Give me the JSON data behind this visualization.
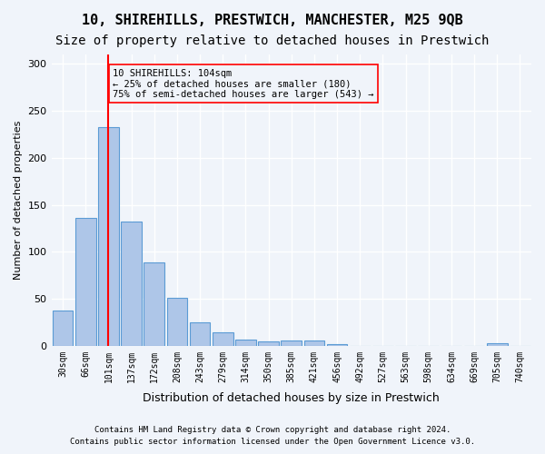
{
  "title1": "10, SHIREHILLS, PRESTWICH, MANCHESTER, M25 9QB",
  "title2": "Size of property relative to detached houses in Prestwich",
  "xlabel": "Distribution of detached houses by size in Prestwich",
  "ylabel": "Number of detached properties",
  "bar_labels": [
    "30sqm",
    "66sqm",
    "101sqm",
    "137sqm",
    "172sqm",
    "208sqm",
    "243sqm",
    "279sqm",
    "314sqm",
    "350sqm",
    "385sqm",
    "421sqm",
    "456sqm",
    "492sqm",
    "527sqm",
    "563sqm",
    "598sqm",
    "634sqm",
    "669sqm",
    "705sqm",
    "740sqm"
  ],
  "bar_values": [
    37,
    136,
    233,
    132,
    89,
    51,
    25,
    14,
    7,
    5,
    6,
    6,
    2,
    0,
    0,
    0,
    0,
    0,
    0,
    3,
    0
  ],
  "bar_color": "#aec6e8",
  "bar_edge_color": "#5b9bd5",
  "red_line_x": 2,
  "annotation_text": "10 SHIREHILLS: 104sqm\n← 25% of detached houses are smaller (180)\n75% of semi-detached houses are larger (543) →",
  "footnote1": "Contains HM Land Registry data © Crown copyright and database right 2024.",
  "footnote2": "Contains public sector information licensed under the Open Government Licence v3.0.",
  "ylim": [
    0,
    310
  ],
  "yticks": [
    0,
    50,
    100,
    150,
    200,
    250,
    300
  ],
  "bg_color": "#f0f4fa",
  "grid_color": "#ffffff",
  "title1_fontsize": 11,
  "title2_fontsize": 10
}
